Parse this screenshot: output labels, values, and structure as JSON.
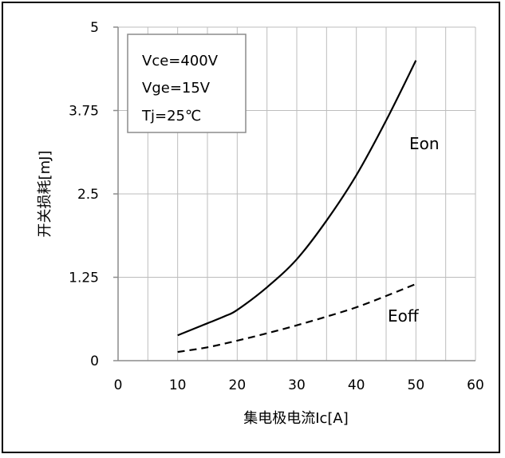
{
  "chart_data": {
    "type": "line",
    "xlabel": "集电极电流Ic[A]",
    "ylabel": "开关损耗[mJ]",
    "xlim": [
      0,
      60
    ],
    "ylim": [
      0,
      5
    ],
    "x_ticks": [
      "0",
      "10",
      "20",
      "30",
      "40",
      "50",
      "60"
    ],
    "y_ticks": [
      "0",
      "1.25",
      "2.5",
      "3.75",
      "5"
    ],
    "grid": true,
    "conditions": [
      "Vce=400V",
      "Vge=15V",
      "Tj=25℃"
    ],
    "conditions_position": "top-left",
    "series": [
      {
        "name": "Eon",
        "style": "solid",
        "color": "#000000",
        "x": [
          10,
          15,
          18,
          20,
          25,
          30,
          35,
          40,
          45,
          50
        ],
        "y": [
          0.38,
          0.56,
          0.67,
          0.76,
          1.1,
          1.52,
          2.1,
          2.78,
          3.6,
          4.5
        ]
      },
      {
        "name": "Eoff",
        "style": "dashed",
        "color": "#000000",
        "x": [
          10,
          15,
          20,
          25,
          30,
          35,
          40,
          45,
          50
        ],
        "y": [
          0.13,
          0.2,
          0.3,
          0.41,
          0.53,
          0.66,
          0.8,
          0.97,
          1.15
        ]
      }
    ]
  }
}
